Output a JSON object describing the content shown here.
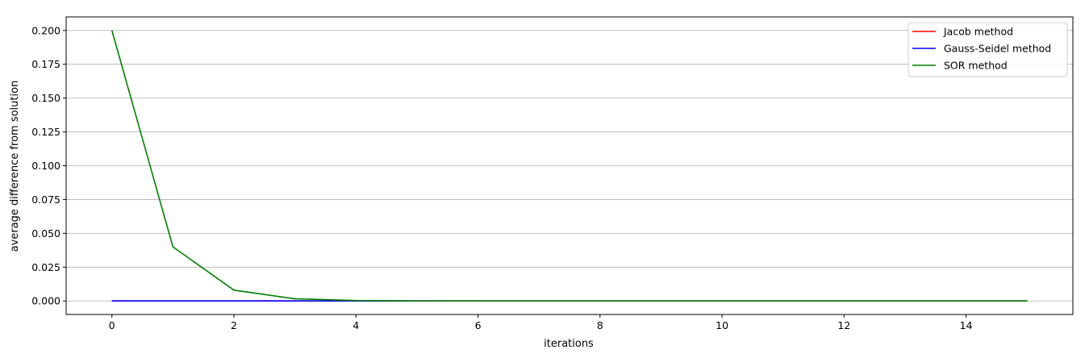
{
  "chart_data": {
    "type": "line",
    "title": "",
    "xlabel": "iterations",
    "ylabel": "average difference from solution",
    "xlim": [
      -0.75,
      15.75
    ],
    "ylim": [
      -0.01,
      0.21
    ],
    "xticks": [
      0,
      2,
      4,
      6,
      8,
      10,
      12,
      14
    ],
    "yticks": [
      0.0,
      0.025,
      0.05,
      0.075,
      0.1,
      0.125,
      0.15,
      0.175,
      0.2
    ],
    "ytick_labels": [
      "0.000",
      "0.025",
      "0.050",
      "0.075",
      "0.100",
      "0.125",
      "0.150",
      "0.175",
      "0.200"
    ],
    "grid": "horizontal",
    "legend_position": "top-right",
    "x": [
      0,
      1,
      2,
      3,
      4,
      5,
      6,
      7,
      8,
      9,
      10,
      11,
      12,
      13,
      14,
      15
    ],
    "series": [
      {
        "name": "Jacob method",
        "color": "#ff0000",
        "values": [
          0,
          0,
          0,
          0,
          0,
          0,
          0,
          0,
          0,
          0,
          0,
          0,
          0,
          0,
          0,
          0
        ]
      },
      {
        "name": "Gauss-Seidel method",
        "color": "#0000ff",
        "values": [
          0,
          0,
          0,
          0,
          0,
          0,
          0,
          0,
          0,
          0,
          0,
          0,
          0,
          0,
          0,
          0
        ]
      },
      {
        "name": "SOR method",
        "color": "#008000",
        "values": [
          0.2,
          0.04,
          0.008,
          0.0016,
          0.0003,
          6e-05,
          1e-05,
          0,
          0,
          0,
          0,
          0,
          0,
          0,
          0,
          0
        ]
      }
    ]
  }
}
